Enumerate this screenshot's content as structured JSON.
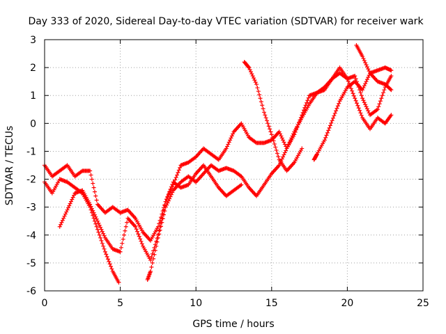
{
  "chart_data": {
    "type": "scatter",
    "title": "Day 333 of 2020, Sidereal Day-to-day VTEC variation (SDTVAR) for receiver wark",
    "xlabel": "GPS time / hours",
    "ylabel": "SDTVAR / TECUs",
    "xlim": [
      0,
      25
    ],
    "ylim": [
      -6,
      3
    ],
    "x_ticks": [
      0,
      5,
      10,
      15,
      20,
      25
    ],
    "y_ticks": [
      -6,
      -5,
      -4,
      -3,
      -2,
      -1,
      0,
      1,
      2,
      3
    ],
    "x_tick_labels": [
      "0",
      "5",
      "10",
      "15",
      "20",
      "25"
    ],
    "y_tick_labels": [
      "-6",
      "-5",
      "-4",
      "-3",
      "-2",
      "-1",
      "0",
      "1",
      "2",
      "3"
    ],
    "grid": true,
    "marker": "+",
    "colors": {
      "series": "#ff0000",
      "grid": "#a0a0a0",
      "axes": "#000000"
    },
    "series": [
      {
        "x": [
          0.0,
          0.5,
          1.0,
          1.5,
          2.0,
          2.5,
          3.0,
          3.5,
          4.0,
          4.5,
          5.0,
          5.5,
          6.0,
          6.5,
          7.0,
          7.5,
          8.0,
          8.5,
          9.0,
          9.5,
          10.0,
          10.5,
          11.0,
          11.5,
          12.0,
          12.5,
          13.0,
          13.5,
          14.0,
          14.5,
          15.0,
          15.5,
          16.0,
          16.5,
          17.0,
          17.5,
          18.0,
          18.5,
          19.0,
          19.5,
          20.0,
          20.5,
          21.0,
          21.5,
          22.0,
          22.5,
          22.9
        ],
        "values": [
          -1.5,
          -1.9,
          -1.7,
          -1.5,
          -1.9,
          -1.7,
          -1.7,
          -2.9,
          -3.2,
          -3.0,
          -3.2,
          -3.1,
          -3.4,
          -3.9,
          -4.2,
          -3.7,
          -2.8,
          -2.2,
          -1.5,
          -1.4,
          -1.2,
          -0.9,
          -1.1,
          -1.3,
          -0.9,
          -0.3,
          0.0,
          -0.5,
          -0.7,
          -0.7,
          -0.6,
          -0.3,
          -0.9,
          -0.4,
          0.3,
          1.0,
          1.1,
          1.2,
          1.6,
          1.8,
          1.6,
          1.7,
          0.9,
          0.3,
          0.5,
          1.3,
          1.7
        ]
      },
      {
        "x": [
          0.0,
          0.5,
          1.0,
          1.5,
          2.0,
          2.5,
          3.0,
          3.5,
          4.0,
          4.5,
          4.9
        ],
        "values": [
          -2.1,
          -2.5,
          -2.0,
          -2.1,
          -2.3,
          -2.5,
          -3.0,
          -3.8,
          -4.6,
          -5.3,
          -5.7
        ]
      },
      {
        "x": [
          1.0,
          1.5,
          2.0,
          2.5,
          3.0,
          3.5,
          4.0,
          4.5,
          5.0,
          5.5,
          6.0,
          6.5,
          7.0,
          7.5,
          8.0,
          8.5,
          9.0,
          9.5,
          10.0,
          10.5,
          11.0,
          11.5,
          12.0,
          12.5,
          13.0
        ],
        "values": [
          -3.7,
          -3.1,
          -2.5,
          -2.4,
          -2.9,
          -3.5,
          -4.1,
          -4.5,
          -4.6,
          -3.4,
          -3.7,
          -4.4,
          -4.9,
          -4.0,
          -2.8,
          -2.1,
          -2.3,
          -2.2,
          -1.8,
          -1.5,
          -1.9,
          -2.3,
          -2.6,
          -2.4,
          -2.2
        ]
      },
      {
        "x": [
          13.2,
          13.5,
          14.0,
          14.5,
          15.0,
          15.5,
          16.0,
          16.5,
          17.0
        ],
        "values": [
          2.2,
          2.0,
          1.4,
          0.4,
          -0.4,
          -1.3,
          -1.7,
          -1.4,
          -0.9
        ]
      },
      {
        "x": [
          6.8,
          7.0,
          7.5,
          8.0,
          8.5,
          9.0,
          9.5,
          10.0,
          10.5,
          11.0,
          11.5,
          12.0,
          12.5,
          13.0,
          13.5,
          14.0,
          14.5,
          15.0,
          15.5,
          16.0,
          16.5,
          17.0,
          17.5,
          18.0,
          18.5,
          19.0,
          19.5,
          20.0,
          20.5,
          21.0,
          21.5,
          22.0,
          22.5,
          22.9
        ],
        "values": [
          -5.6,
          -5.3,
          -4.1,
          -3.0,
          -2.4,
          -2.1,
          -1.9,
          -2.1,
          -1.8,
          -1.5,
          -1.7,
          -1.6,
          -1.7,
          -1.9,
          -2.3,
          -2.6,
          -2.2,
          -1.8,
          -1.5,
          -0.9,
          -0.3,
          0.2,
          0.7,
          1.1,
          1.3,
          1.6,
          2.0,
          1.6,
          0.9,
          0.2,
          -0.2,
          0.2,
          0.0,
          0.3
        ]
      },
      {
        "x": [
          20.6,
          21.0,
          21.5,
          22.0,
          22.5,
          22.9
        ],
        "values": [
          2.8,
          2.4,
          1.8,
          1.5,
          1.4,
          1.2
        ]
      },
      {
        "x": [
          17.8,
          18.0,
          18.5,
          19.0,
          19.5,
          20.0,
          20.5,
          21.0,
          21.5,
          22.0,
          22.5,
          22.9
        ],
        "values": [
          -1.3,
          -1.1,
          -0.6,
          0.1,
          0.8,
          1.3,
          1.5,
          1.2,
          1.8,
          1.9,
          2.0,
          1.9
        ]
      }
    ]
  }
}
